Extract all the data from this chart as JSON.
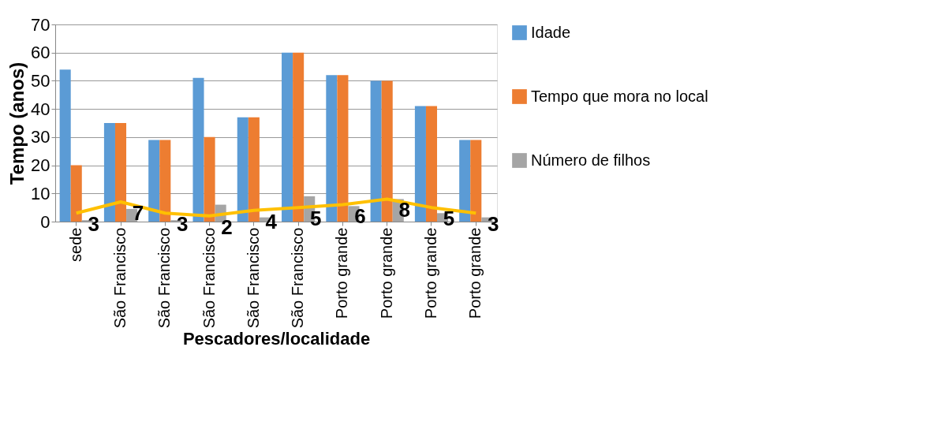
{
  "chart_data": {
    "type": "bar",
    "xlabel": "Pescadores/localidade",
    "ylabel": "Tempo (anos)",
    "categories": [
      "sede",
      "São Francisco",
      "São Francisco",
      "São Francisco",
      "São Francisco",
      "São Francisco",
      "Porto grande",
      "Porto grande",
      "Porto grande",
      "Porto grande"
    ],
    "series": [
      {
        "name": "Idade",
        "color": "#5b9bd5",
        "values": [
          54,
          35,
          29,
          51,
          37,
          60,
          52,
          50,
          41,
          29
        ]
      },
      {
        "name": "Tempo que mora no local",
        "color": "#ed7d31",
        "values": [
          20,
          35,
          29,
          30,
          37,
          60,
          52,
          50,
          41,
          29
        ]
      },
      {
        "name": "Número de filhos",
        "color": "#a5a5a5",
        "values": [
          0.5,
          4.5,
          0.5,
          6,
          1.5,
          9,
          5.5,
          8,
          3,
          1.5
        ]
      },
      {
        "type": "line",
        "color": "#ffc000",
        "values": [
          3,
          7,
          3,
          2,
          4,
          5,
          6,
          8,
          5,
          3
        ],
        "value_labels": [
          "3",
          "7",
          "3",
          "2",
          "4",
          "5",
          "6",
          "8",
          "5",
          "3"
        ]
      }
    ],
    "ylim": [
      0,
      70
    ],
    "yticks": [
      0,
      10,
      20,
      30,
      40,
      50,
      60,
      70
    ],
    "grid": "y",
    "legend": "right"
  }
}
